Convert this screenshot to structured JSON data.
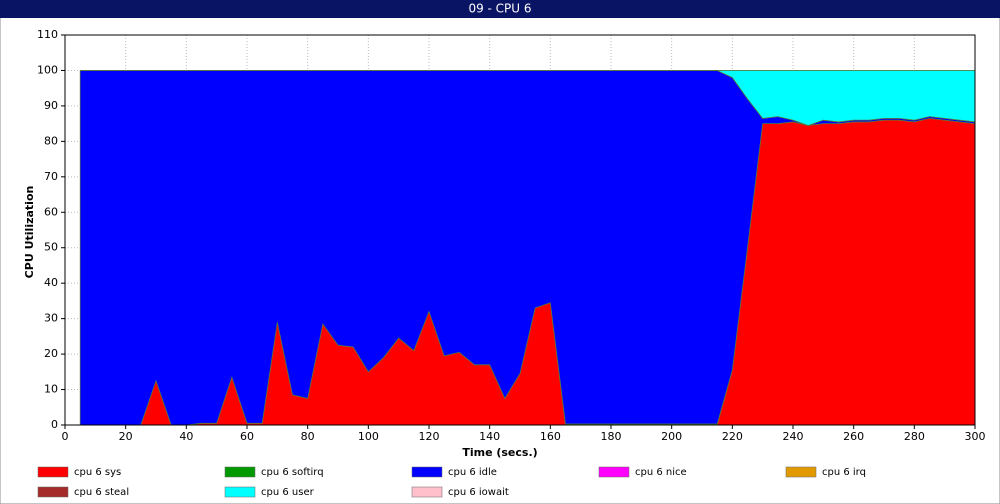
{
  "window_title": "09 - CPU 6",
  "chart_data": {
    "type": "stacked-area",
    "x_label": "Time (secs.)",
    "y_label": "CPU Utilization",
    "xlim": [
      0,
      300
    ],
    "xticks": [
      0,
      20,
      40,
      60,
      80,
      100,
      120,
      140,
      160,
      180,
      200,
      220,
      240,
      260,
      280,
      300
    ],
    "ylim": [
      0,
      110
    ],
    "yticks": [
      0,
      10,
      20,
      30,
      40,
      50,
      60,
      70,
      80,
      90,
      100,
      110
    ],
    "grid": true,
    "x": [
      5,
      10,
      15,
      20,
      25,
      30,
      35,
      40,
      45,
      50,
      55,
      60,
      65,
      70,
      75,
      80,
      85,
      90,
      95,
      100,
      105,
      110,
      115,
      120,
      125,
      130,
      135,
      140,
      145,
      150,
      155,
      160,
      165,
      170,
      175,
      180,
      185,
      190,
      195,
      200,
      205,
      210,
      215,
      220,
      225,
      230,
      235,
      240,
      245,
      250,
      255,
      260,
      265,
      270,
      275,
      280,
      285,
      290,
      295,
      300
    ],
    "series": [
      {
        "name": "cpu 6 sys",
        "color": "#ff0000",
        "values": [
          0,
          0,
          0,
          0,
          0,
          12.5,
          0,
          0,
          0.5,
          0.5,
          13.5,
          0.5,
          0.5,
          29,
          8.5,
          7.5,
          28.5,
          22.5,
          22,
          15,
          19,
          24.5,
          21,
          32,
          19.5,
          20.5,
          17,
          17,
          7.5,
          14.5,
          33,
          34.5,
          0,
          0,
          0,
          0,
          0,
          0,
          0,
          0,
          0,
          0,
          0,
          15.5,
          50,
          85,
          85,
          85.5,
          84.5,
          85,
          85,
          85.5,
          85.5,
          86,
          86,
          85.5,
          86.5,
          86,
          85.5,
          85
        ]
      },
      {
        "name": "cpu 6 softirq",
        "color": "#009900",
        "values": [
          0,
          0,
          0,
          0,
          0,
          0,
          0,
          0,
          0,
          0,
          0,
          0,
          0,
          0,
          0,
          0,
          0,
          0,
          0,
          0,
          0,
          0,
          0,
          0,
          0,
          0,
          0,
          0,
          0,
          0,
          0,
          0,
          0.3,
          0.3,
          0.3,
          0.3,
          0.3,
          0.3,
          0.3,
          0.3,
          0.3,
          0.3,
          0.3,
          0,
          0,
          0,
          0,
          0,
          0,
          0,
          0,
          0,
          0,
          0,
          0,
          0,
          0,
          0,
          0,
          0
        ]
      },
      {
        "name": "cpu 6 idle",
        "color": "#0000ff",
        "values": [
          100,
          100,
          100,
          100,
          100,
          87.5,
          100,
          100,
          99.5,
          99.5,
          86.5,
          99.5,
          99.5,
          71,
          91.5,
          92.5,
          71.5,
          77.5,
          78,
          85,
          81,
          75.5,
          79,
          68,
          80.5,
          79.5,
          83,
          83,
          92.5,
          85.5,
          67,
          65.5,
          99.7,
          99.7,
          99.7,
          99.7,
          99.7,
          99.7,
          99.7,
          99.7,
          99.7,
          99.7,
          99.7,
          82.5,
          42,
          1.5,
          2,
          0.5,
          0,
          1,
          0.5,
          0.5,
          0.5,
          0.5,
          0.5,
          0.5,
          0.5,
          0.5,
          0.5,
          0.5
        ]
      },
      {
        "name": "cpu 6 nice",
        "color": "#ff00ff",
        "values": [
          0,
          0,
          0,
          0,
          0,
          0,
          0,
          0,
          0,
          0,
          0,
          0,
          0,
          0,
          0,
          0,
          0,
          0,
          0,
          0,
          0,
          0,
          0,
          0,
          0,
          0,
          0,
          0,
          0,
          0,
          0,
          0,
          0,
          0,
          0,
          0,
          0,
          0,
          0,
          0,
          0,
          0,
          0,
          0,
          0,
          0,
          0,
          0,
          0,
          0,
          0,
          0,
          0,
          0,
          0,
          0,
          0,
          0,
          0,
          0
        ]
      },
      {
        "name": "cpu 6 irq",
        "color": "#e09a00",
        "values": [
          0,
          0,
          0,
          0,
          0,
          0,
          0,
          0,
          0,
          0,
          0,
          0,
          0,
          0,
          0,
          0,
          0,
          0,
          0,
          0,
          0,
          0,
          0,
          0,
          0,
          0,
          0,
          0,
          0,
          0,
          0,
          0,
          0,
          0,
          0,
          0,
          0,
          0,
          0,
          0,
          0,
          0,
          0,
          0,
          0,
          0,
          0,
          0,
          0,
          0,
          0,
          0,
          0,
          0,
          0,
          0,
          0,
          0,
          0,
          0
        ]
      },
      {
        "name": "cpu 6 steal",
        "color": "#a52a2a",
        "values": [
          0,
          0,
          0,
          0,
          0,
          0,
          0,
          0,
          0,
          0,
          0,
          0,
          0,
          0,
          0,
          0,
          0,
          0,
          0,
          0,
          0,
          0,
          0,
          0,
          0,
          0,
          0,
          0,
          0,
          0,
          0,
          0,
          0,
          0,
          0,
          0,
          0,
          0,
          0,
          0,
          0,
          0,
          0,
          0,
          0,
          0,
          0,
          0,
          0,
          0,
          0,
          0,
          0,
          0,
          0,
          0,
          0,
          0,
          0,
          0
        ]
      },
      {
        "name": "cpu 6 user",
        "color": "#00ffff",
        "values": [
          0,
          0,
          0,
          0,
          0,
          0,
          0,
          0,
          0,
          0,
          0,
          0,
          0,
          0,
          0,
          0,
          0,
          0,
          0,
          0,
          0,
          0,
          0,
          0,
          0,
          0,
          0,
          0,
          0,
          0,
          0,
          0,
          0,
          0,
          0,
          0,
          0,
          0,
          0,
          0,
          0,
          0,
          0,
          2,
          8,
          13.5,
          13,
          14,
          15.5,
          14,
          14.5,
          14,
          14,
          13.5,
          13.5,
          14,
          13,
          13.5,
          14,
          14.5
        ]
      },
      {
        "name": "cpu 6 iowait",
        "color": "#ffc0cb",
        "values": [
          0,
          0,
          0,
          0,
          0,
          0,
          0,
          0,
          0,
          0,
          0,
          0,
          0,
          0,
          0,
          0,
          0,
          0,
          0,
          0,
          0,
          0,
          0,
          0,
          0,
          0,
          0,
          0,
          0,
          0,
          0,
          0,
          0,
          0,
          0,
          0,
          0,
          0,
          0,
          0,
          0,
          0,
          0,
          0,
          0,
          0,
          0,
          0,
          0,
          0,
          0,
          0,
          0,
          0,
          0,
          0,
          0,
          0,
          0,
          0
        ]
      }
    ]
  }
}
